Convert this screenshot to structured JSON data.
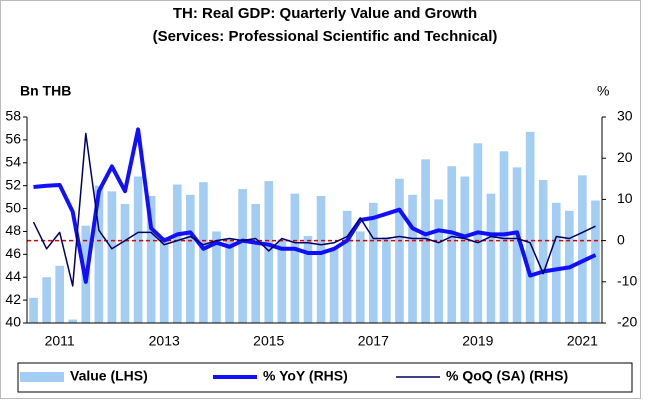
{
  "chart_data": {
    "type": "combo",
    "title": "TH: Real GDP: Quarterly Value and Growth",
    "subtitle": "(Services: Professional Scientific and Technical)",
    "y_label": "Bn THB",
    "y2_label": "%",
    "categories": [
      null,
      null,
      "2011",
      null,
      null,
      null,
      null,
      null,
      null,
      null,
      "2013",
      null,
      null,
      null,
      null,
      null,
      null,
      null,
      "2015",
      null,
      null,
      null,
      null,
      null,
      null,
      null,
      "2017",
      null,
      null,
      null,
      null,
      null,
      null,
      null,
      "2019",
      null,
      null,
      null,
      null,
      null,
      null,
      null,
      "2021",
      null
    ],
    "series": [
      {
        "name": "Value (LHS)",
        "type": "bar",
        "axis": "y",
        "color": "#a3cdf3",
        "values": [
          42.2,
          44,
          45,
          40.3,
          48.5,
          52,
          51.5,
          50.4,
          52.8,
          51.1,
          47.5,
          52.1,
          51.2,
          52.3,
          48,
          47.3,
          51.7,
          50.4,
          52.4,
          47.3,
          51.3,
          47.6,
          51.1,
          46.5,
          49.8,
          48,
          50.5,
          47.5,
          52.6,
          51.2,
          54.3,
          50.8,
          53.7,
          52.8,
          55.7,
          51.3,
          55,
          53.6,
          56.7,
          52.5,
          50.5,
          49.8,
          52.9,
          50.7
        ]
      },
      {
        "name": "% YoY (RHS)",
        "type": "line",
        "axis": "y2",
        "color": "#1010ff",
        "width": 4,
        "values": [
          13,
          13.3,
          13.5,
          7,
          -10,
          12,
          18,
          12,
          27,
          3,
          0,
          1.5,
          2,
          -2,
          -0.5,
          -1.5,
          0,
          -0.5,
          -1,
          -2,
          -2,
          -3,
          -3,
          -2,
          0,
          5,
          5.5,
          6.5,
          7.5,
          3,
          1.5,
          2.5,
          2,
          1,
          2,
          1.5,
          1.5,
          2,
          -8.5,
          -7.5,
          -7,
          -6.5,
          -5,
          -3.5
        ]
      },
      {
        "name": "% QoQ (SA) (RHS)",
        "type": "line",
        "axis": "y2",
        "color": "#000066",
        "width": 1.5,
        "values": [
          4.5,
          -2,
          2,
          -11,
          26,
          2.5,
          -2,
          0,
          2,
          2,
          -1,
          0,
          1,
          -1,
          0,
          0.5,
          0,
          0.5,
          -2.5,
          0.5,
          -0.5,
          -0.5,
          -1,
          -0.5,
          1,
          5.5,
          0.5,
          0.5,
          1,
          0.5,
          0.5,
          -0.5,
          1,
          0.5,
          -0.5,
          1,
          0.5,
          0.5,
          -0.5,
          -8,
          1,
          0.5,
          2,
          3.5
        ]
      }
    ],
    "ylim": [
      40,
      58
    ],
    "yticks": [
      40,
      42,
      44,
      46,
      48,
      50,
      52,
      54,
      56,
      58
    ],
    "y2lim": [
      -20,
      30
    ],
    "y2ticks": [
      -20,
      -10,
      0,
      10,
      20,
      30
    ],
    "reference_line": {
      "axis": "y2",
      "value": 0,
      "color": "#e00000"
    },
    "legend": "bottom"
  }
}
